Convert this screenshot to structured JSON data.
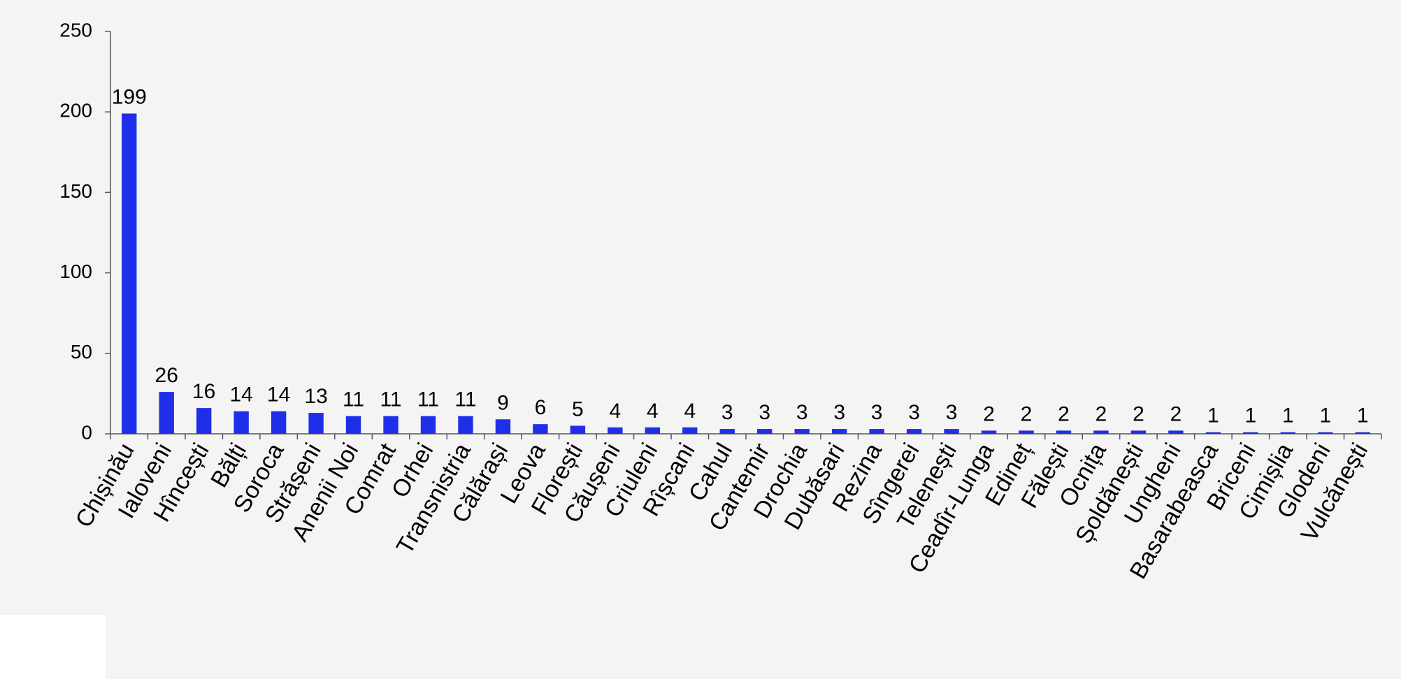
{
  "chart_data": {
    "type": "bar",
    "categories": [
      "Chișinău",
      "Ialoveni",
      "Hîncești",
      "Bălți",
      "Soroca",
      "Strășeni",
      "Anenii Noi",
      "Comrat",
      "Orhei",
      "Transnistria",
      "Călărași",
      "Leova",
      "Florești",
      "Căușeni",
      "Criuleni",
      "Rîșcani",
      "Cahul",
      "Cantemir",
      "Drochia",
      "Dubăsari",
      "Rezina",
      "Sîngerei",
      "Telenești",
      "Ceadîr-Lunga",
      "Edineț",
      "Fălești",
      "Ocnița",
      "Șoldănești",
      "Ungheni",
      "Basarabeasca",
      "Briceni",
      "Cimișlia",
      "Glodeni",
      "Vulcănești"
    ],
    "values": [
      199,
      26,
      16,
      14,
      14,
      13,
      11,
      11,
      11,
      11,
      9,
      6,
      5,
      4,
      4,
      4,
      3,
      3,
      3,
      3,
      3,
      3,
      3,
      2,
      2,
      2,
      2,
      2,
      2,
      1,
      1,
      1,
      1,
      1
    ],
    "color": "#1f2ee8",
    "ylim": [
      0,
      250
    ],
    "yticks": [
      0,
      50,
      100,
      150,
      200,
      250
    ],
    "grid": false
  }
}
